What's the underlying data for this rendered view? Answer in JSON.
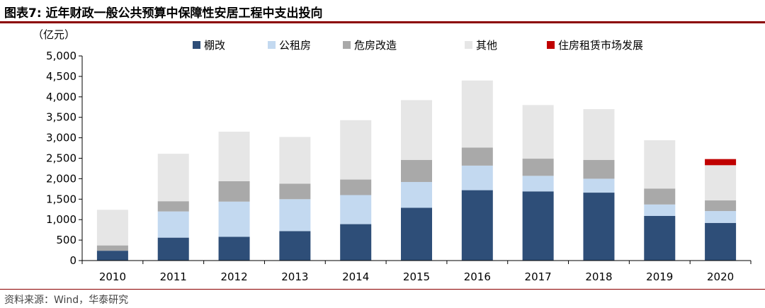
{
  "header": {
    "title": "图表7:  近年财政一般公共预算中保障性安居工程中支出投向"
  },
  "footer": {
    "source": "资料来源：Wind，华泰研究"
  },
  "chart_data": {
    "type": "bar",
    "stacked": true,
    "unit_label": "（亿元）",
    "categories": [
      "2010",
      "2011",
      "2012",
      "2013",
      "2014",
      "2015",
      "2016",
      "2017",
      "2018",
      "2019",
      "2020"
    ],
    "ylim": [
      0,
      5000
    ],
    "yticks": [
      0,
      500,
      1000,
      1500,
      2000,
      2500,
      3000,
      3500,
      4000,
      4500,
      5000
    ],
    "ytick_labels": [
      "0",
      "500",
      "1,000",
      "1,500",
      "2,000",
      "2,500",
      "3,000",
      "3,500",
      "4,000",
      "4,500",
      "5,000"
    ],
    "legend_position": "top",
    "series": [
      {
        "name": "棚改",
        "color": "#2e4e78",
        "values": [
          240,
          560,
          580,
          720,
          890,
          1290,
          1720,
          1690,
          1660,
          1090,
          920
        ]
      },
      {
        "name": "公租房",
        "color": "#c3d9f0",
        "values": [
          0,
          640,
          860,
          780,
          710,
          630,
          600,
          380,
          340,
          280,
          290
        ]
      },
      {
        "name": "危房改造",
        "color": "#a9a9a9",
        "values": [
          130,
          250,
          500,
          380,
          380,
          540,
          440,
          420,
          460,
          390,
          260
        ]
      },
      {
        "name": "其他",
        "color": "#e6e6e6",
        "values": [
          870,
          1160,
          1210,
          1140,
          1450,
          1460,
          1640,
          1310,
          1240,
          1180,
          860
        ]
      },
      {
        "name": "住房租赁市场发展",
        "color": "#c00000",
        "values": [
          0,
          0,
          0,
          0,
          0,
          0,
          0,
          0,
          0,
          0,
          150
        ]
      }
    ]
  }
}
